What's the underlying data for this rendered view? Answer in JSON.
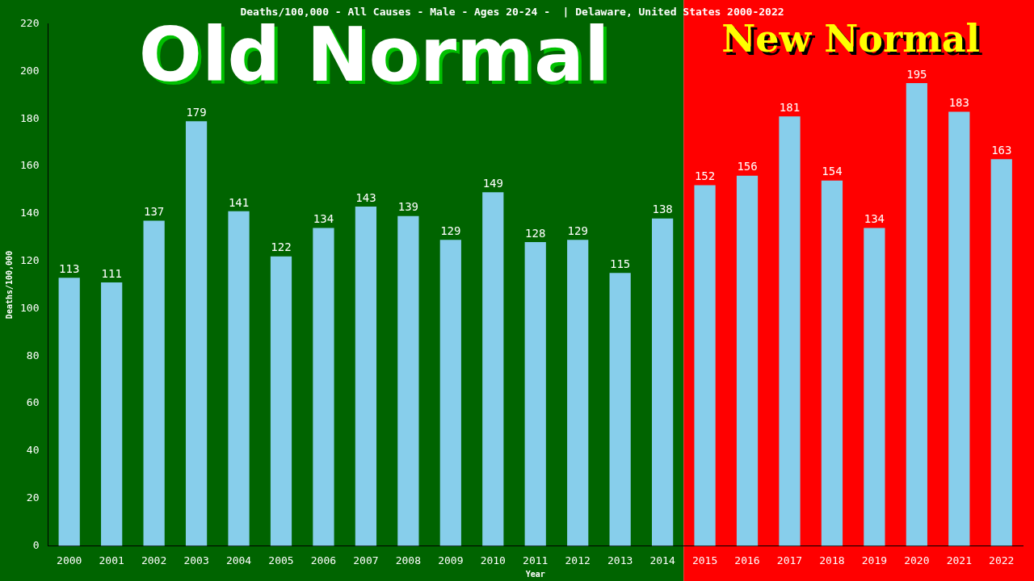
{
  "chart_data": {
    "type": "bar",
    "title": "Deaths/100,000 - All Causes - Male - Ages 20-24 -  | Delaware, United States 2000-2022",
    "xlabel": "Year",
    "ylabel": "Deaths/100,000",
    "categories": [
      "2000",
      "2001",
      "2002",
      "2003",
      "2004",
      "2005",
      "2006",
      "2007",
      "2008",
      "2009",
      "2010",
      "2011",
      "2012",
      "2013",
      "2014",
      "2015",
      "2016",
      "2017",
      "2018",
      "2019",
      "2020",
      "2021",
      "2022"
    ],
    "values": [
      113,
      111,
      137,
      179,
      141,
      122,
      134,
      143,
      139,
      129,
      149,
      128,
      129,
      115,
      138,
      152,
      156,
      181,
      154,
      134,
      195,
      183,
      163
    ],
    "color": "#87ceeb",
    "ylim": [
      0,
      220
    ],
    "yticks": [
      0,
      20,
      40,
      60,
      80,
      100,
      120,
      140,
      160,
      180,
      200,
      220
    ],
    "grid": false,
    "legend": false,
    "data_labels": true,
    "bands": [
      {
        "axis": "x",
        "from": "2000",
        "to": "2014",
        "label": "Old Normal",
        "color": "#006400"
      },
      {
        "axis": "x",
        "from": "2015",
        "to": "2022",
        "label": "New Normal",
        "color": "#ff0000"
      }
    ]
  }
}
